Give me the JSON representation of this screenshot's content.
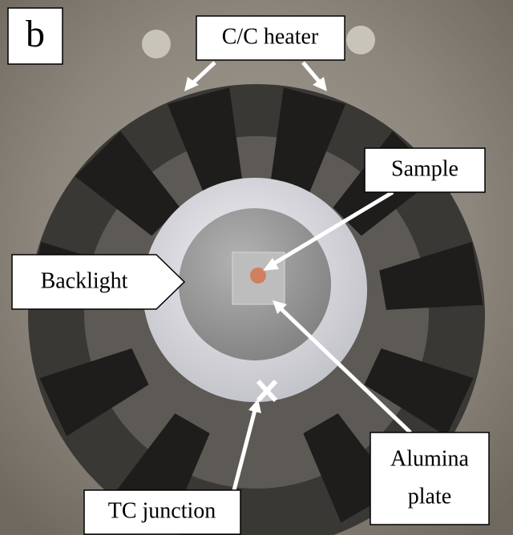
{
  "panel_label": "b",
  "labels": {
    "heater": "C/C heater",
    "sample": "Sample",
    "backlight": "Backlight",
    "alumina_plate": [
      "Alumina",
      "plate"
    ],
    "tc_junction": "TC junction"
  }
}
